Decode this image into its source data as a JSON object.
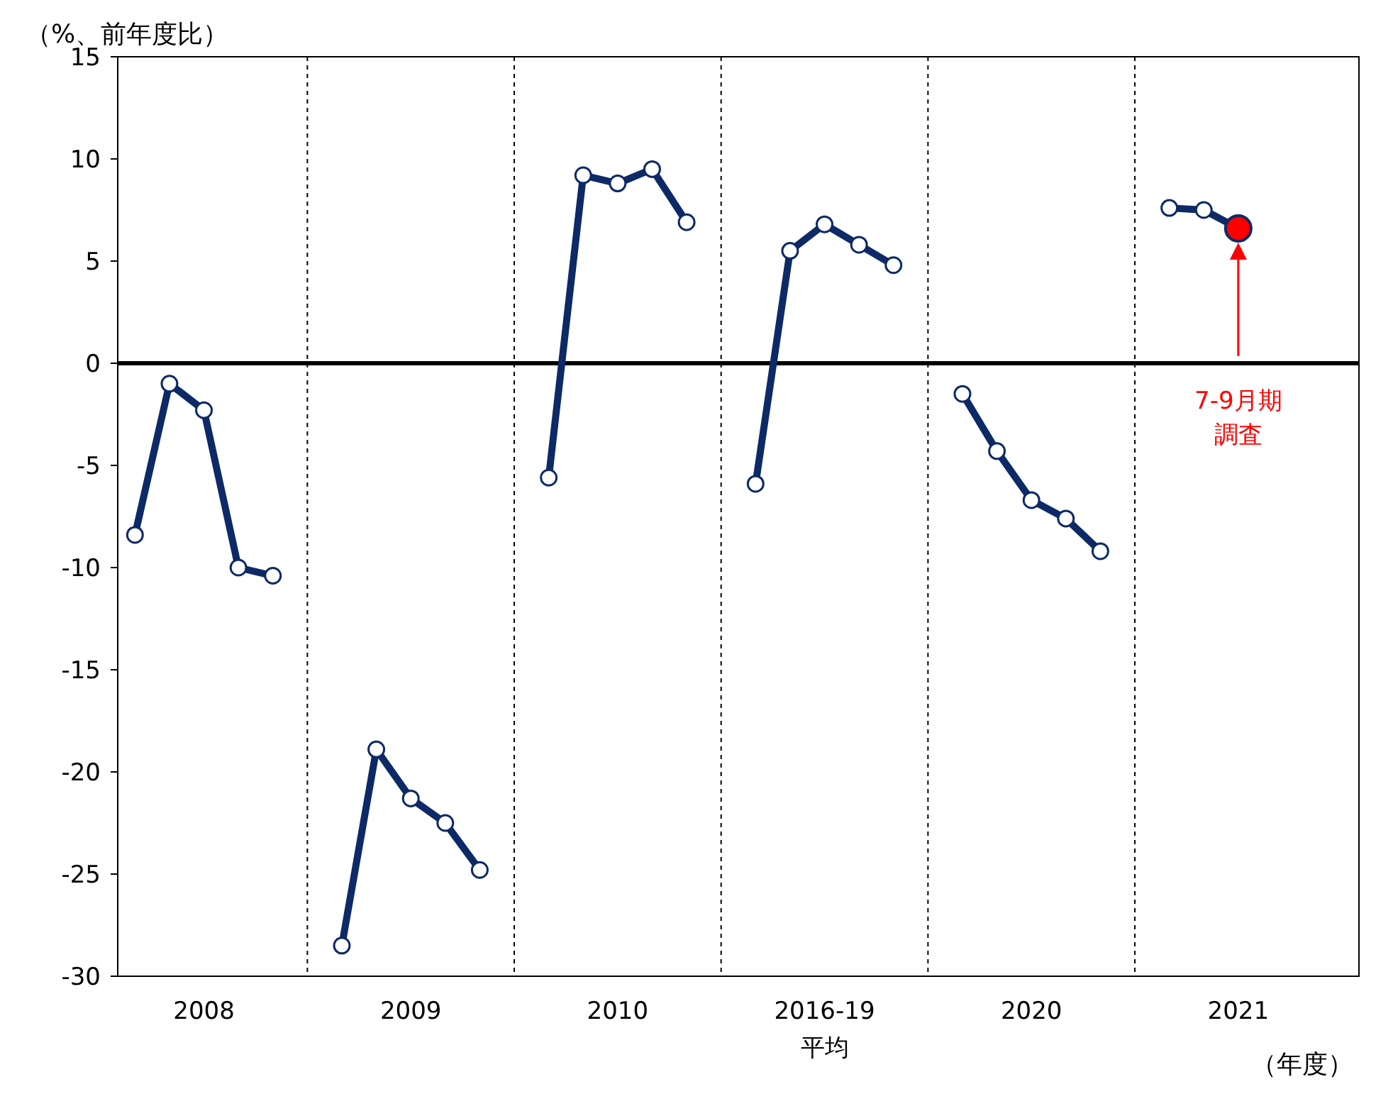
{
  "chart_data": {
    "type": "line",
    "ylabel": "（%、前年度比）",
    "xlabel": "（年度）",
    "categories": [
      null,
      null,
      "2008",
      null,
      null,
      null,
      null,
      null,
      "2009",
      null,
      null,
      null,
      null,
      null,
      "2010",
      null,
      null,
      null,
      null,
      null,
      "2016-19\n平均",
      null,
      null,
      null,
      null,
      null,
      "2020",
      null,
      null,
      null,
      null,
      null,
      "2021",
      null,
      null,
      null
    ],
    "series": [
      {
        "color": "#0d2a66",
        "values": [
          -8.4,
          -1.0,
          -2.3,
          -10.0,
          -10.4,
          null,
          -28.5,
          -18.9,
          -21.3,
          -22.5,
          -24.8,
          null,
          -5.6,
          9.2,
          8.8,
          9.5,
          6.9,
          null,
          -5.9,
          5.5,
          6.8,
          5.8,
          4.8,
          null,
          -1.5,
          -4.3,
          -6.7,
          -7.6,
          -9.2,
          null,
          7.6,
          7.5,
          6.6,
          null,
          null,
          null
        ],
        "colors": [
          "#ffffff",
          "#ffffff",
          "#ffffff",
          "#ffffff",
          "#ffffff",
          null,
          "#ffffff",
          "#ffffff",
          "#ffffff",
          "#ffffff",
          "#ffffff",
          null,
          "#ffffff",
          "#ffffff",
          "#ffffff",
          "#ffffff",
          "#ffffff",
          null,
          "#ffffff",
          "#ffffff",
          "#ffffff",
          "#ffffff",
          "#ffffff",
          null,
          "#ffffff",
          "#ffffff",
          "#ffffff",
          "#ffffff",
          "#ffffff",
          null,
          "#ffffff",
          "#ffffff",
          "#ff0000",
          null,
          null,
          null
        ]
      }
    ],
    "ylim": [
      -30,
      15
    ],
    "yticks": [
      -30,
      -25,
      -20,
      -15,
      -10,
      -5,
      0,
      5,
      10,
      15
    ],
    "grid": "x",
    "marker": "circle",
    "line_style": "solid",
    "ref_lines": [
      {
        "axis": "y",
        "value": 0,
        "color": "#000000"
      }
    ],
    "annotations": [
      "7-9月期",
      "調査"
    ]
  }
}
